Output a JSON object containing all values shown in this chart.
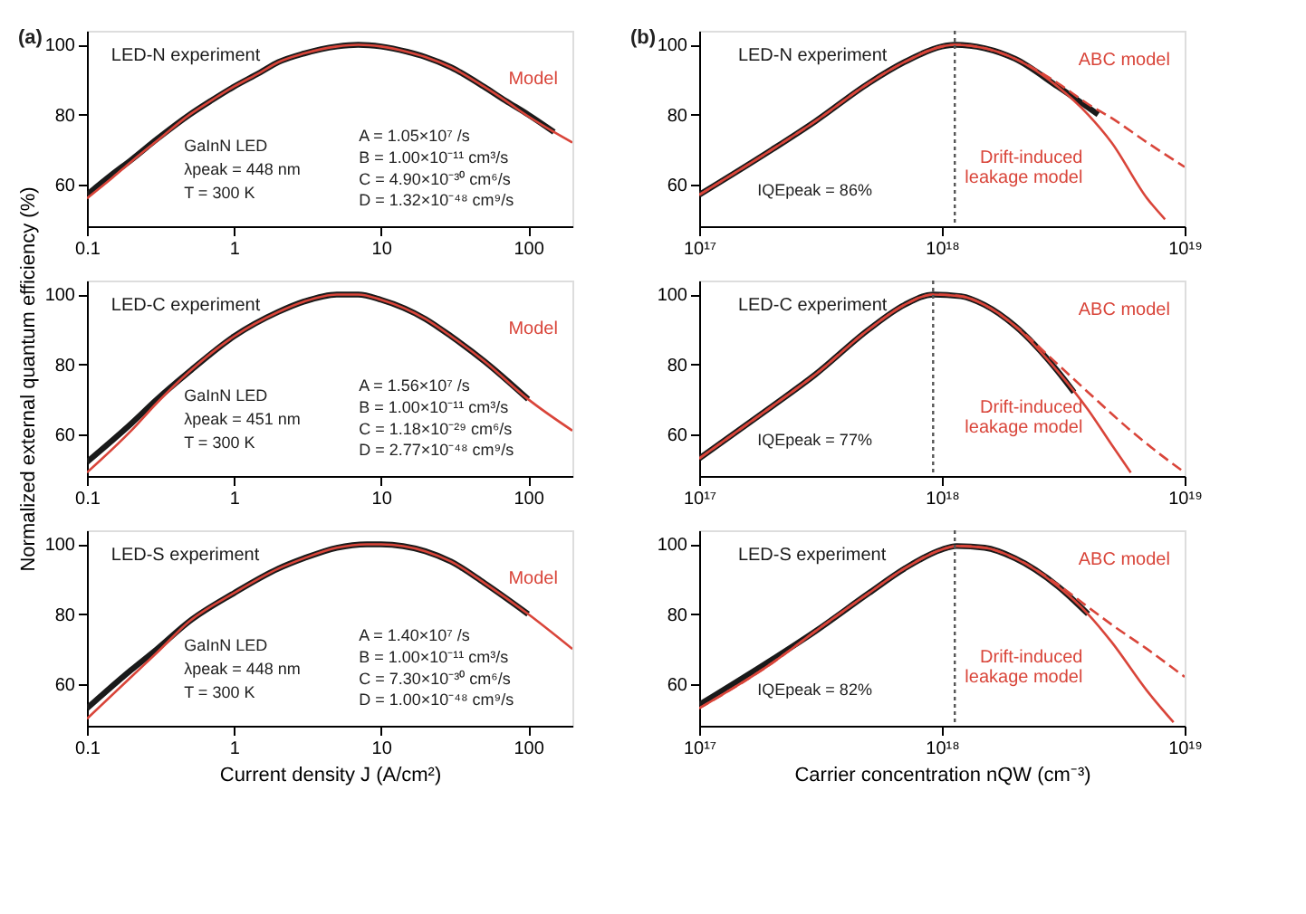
{
  "chart_data": [
    {
      "type": "line",
      "log": "x",
      "xlim": [
        0.1,
        200
      ],
      "xticks": [
        0.1,
        1,
        10,
        100
      ],
      "ylim": [
        48,
        104
      ],
      "yticks": [
        60,
        80,
        100
      ],
      "grid": false,
      "legend": false,
      "annotations": [
        "(a)",
        "GaInN LED",
        "λpeak = 448 nm",
        "T = 300 K",
        "A = 1.05×10⁷ /s",
        "B = 1.00×10⁻¹¹ cm³/s",
        "C = 4.90×10⁻³⁰ cm⁶/s",
        "D = 1.32×10⁻⁴⁸ cm⁹/s"
      ],
      "series": [
        {
          "name": "LED-N experiment",
          "color": "#1a1a1a",
          "type": "line",
          "line_style": "solid",
          "x": [
            0.1,
            0.15,
            0.2,
            0.3,
            0.5,
            0.7,
            1,
            1.5,
            2,
            3,
            5,
            7,
            10,
            15,
            20,
            30,
            50,
            70,
            100,
            150
          ],
          "values": [
            57,
            63,
            67,
            73,
            80,
            84,
            88,
            92,
            95,
            97.5,
            99.5,
            100,
            99.5,
            98,
            96.5,
            93.5,
            88,
            84,
            80,
            75
          ]
        },
        {
          "name": "Model",
          "color": "#d9453a",
          "type": "line",
          "line_style": "solid",
          "x": [
            0.1,
            0.15,
            0.2,
            0.3,
            0.5,
            0.7,
            1,
            1.5,
            2,
            3,
            5,
            7,
            10,
            15,
            20,
            30,
            50,
            70,
            100,
            150,
            200
          ],
          "values": [
            56,
            62,
            66.5,
            72.5,
            80,
            84,
            88,
            92,
            95,
            97.5,
            99.5,
            100,
            99.5,
            98,
            96.5,
            93.5,
            88,
            84,
            79.5,
            75,
            72
          ]
        }
      ]
    },
    {
      "type": "line",
      "log": "x",
      "xlim": [
        1e+17,
        1e+19
      ],
      "xticks": [
        {
          "value": 1e+17,
          "label": "10¹⁷"
        },
        {
          "value": 1e+18,
          "label": "10¹⁸"
        },
        {
          "value": 1e+19,
          "label": "10¹⁹"
        }
      ],
      "ylim": [
        48,
        104
      ],
      "yticks": [
        60,
        80,
        100
      ],
      "grid": false,
      "legend": false,
      "annotations": [
        "(b)",
        "IQEpeak = 86%"
      ],
      "ref_lines": [
        {
          "axis": "x",
          "value": 1.13e+18,
          "color": "#555555",
          "line_style": "dotted"
        }
      ],
      "series": [
        {
          "name": "LED-N experiment",
          "color": "#1a1a1a",
          "type": "line",
          "line_style": "solid",
          "x": [
            1e+17,
            2e+17,
            3e+17,
            5e+17,
            7e+17,
            1e+18,
            1.13e+18,
            1.5e+18,
            2e+18,
            3e+18,
            4.4e+18
          ],
          "values": [
            57,
            70,
            78,
            89,
            95,
            99.5,
            100,
            99,
            96,
            88,
            80
          ]
        },
        {
          "name": "ABC model",
          "color": "#d9453a",
          "type": "line",
          "line_style": "dashed",
          "x": [
            1e+17,
            2e+17,
            3e+17,
            5e+17,
            7e+17,
            1e+18,
            1.13e+18,
            1.5e+18,
            2e+18,
            3e+18,
            4e+18,
            5e+18,
            7e+18,
            1e+19
          ],
          "values": [
            57,
            70,
            78,
            89,
            95,
            99.5,
            100,
            99,
            96,
            89,
            83,
            79,
            72,
            65
          ]
        },
        {
          "name": "Drift-induced leakage model",
          "color": "#d9453a",
          "type": "line",
          "line_style": "solid",
          "x": [
            1e+17,
            2e+17,
            3e+17,
            5e+17,
            7e+17,
            1e+18,
            1.13e+18,
            1.5e+18,
            2e+18,
            3e+18,
            4e+18,
            5e+18,
            7e+18,
            8.3e+18
          ],
          "values": [
            57,
            70,
            78,
            89,
            95,
            99.5,
            100,
            99,
            96,
            88,
            80,
            72,
            56,
            50
          ]
        }
      ]
    },
    {
      "type": "line",
      "log": "x",
      "xlim": [
        0.1,
        200
      ],
      "xticks": [
        0.1,
        1,
        10,
        100
      ],
      "ylim": [
        48,
        104
      ],
      "yticks": [
        60,
        80,
        100
      ],
      "grid": false,
      "legend": false,
      "ylabel": "Normalized external quantum efficiency (%)",
      "annotations": [
        "GaInN LED",
        "λpeak = 451 nm",
        "T = 300 K",
        "A = 1.56×10⁷ /s",
        "B = 1.00×10⁻¹¹ cm³/s",
        "C = 1.18×10⁻²⁹ cm⁶/s",
        "D = 2.77×10⁻⁴⁸ cm⁹/s"
      ],
      "series": [
        {
          "name": "LED-C experiment",
          "color": "#1a1a1a",
          "type": "line",
          "line_style": "solid",
          "x": [
            0.1,
            0.2,
            0.3,
            0.5,
            1,
            2,
            3,
            5,
            7,
            10,
            20,
            30,
            50,
            100
          ],
          "values": [
            52,
            63,
            70,
            78,
            88,
            95,
            98,
            100,
            100,
            98.5,
            93,
            88,
            81,
            70
          ]
        },
        {
          "name": "Model",
          "color": "#d9453a",
          "type": "line",
          "line_style": "solid",
          "x": [
            0.1,
            0.2,
            0.3,
            0.5,
            1,
            2,
            3,
            5,
            7,
            10,
            20,
            30,
            50,
            100,
            200
          ],
          "values": [
            49,
            61,
            69,
            78,
            88,
            95,
            98,
            100,
            100,
            98.5,
            93,
            88,
            81,
            70,
            61
          ]
        }
      ]
    },
    {
      "type": "line",
      "log": "x",
      "xlim": [
        1e+17,
        1e+19
      ],
      "xticks": [
        {
          "value": 1e+17,
          "label": "10¹⁷"
        },
        {
          "value": 1e+18,
          "label": "10¹⁸"
        },
        {
          "value": 1e+19,
          "label": "10¹⁹"
        }
      ],
      "ylim": [
        48,
        104
      ],
      "yticks": [
        60,
        80,
        100
      ],
      "grid": false,
      "legend": false,
      "annotations": [
        "IQEpeak = 77%"
      ],
      "ref_lines": [
        {
          "axis": "x",
          "value": 9.2e+17,
          "color": "#555555",
          "line_style": "dotted"
        }
      ],
      "series": [
        {
          "name": "LED-C experiment",
          "color": "#1a1a1a",
          "type": "line",
          "line_style": "solid",
          "x": [
            1e+17,
            2e+17,
            3e+17,
            5e+17,
            7e+17,
            9.2e+17,
            1.2e+18,
            1.5e+18,
            2e+18,
            3e+18,
            3.5e+18
          ],
          "values": [
            53,
            68,
            77,
            90,
            97,
            100,
            99.5,
            97,
            91,
            78,
            72
          ]
        },
        {
          "name": "ABC model",
          "color": "#d9453a",
          "type": "line",
          "line_style": "dashed",
          "x": [
            1e+17,
            2e+17,
            3e+17,
            5e+17,
            7e+17,
            9.2e+17,
            1.2e+18,
            1.5e+18,
            2e+18,
            3e+18,
            4e+18,
            6e+18,
            8e+18,
            1e+19
          ],
          "values": [
            53,
            68,
            77,
            90,
            97,
            100,
            99.5,
            97,
            91,
            80,
            72,
            61,
            54,
            49
          ]
        },
        {
          "name": "Drift-induced leakage model",
          "color": "#d9453a",
          "type": "line",
          "line_style": "solid",
          "x": [
            1e+17,
            2e+17,
            3e+17,
            5e+17,
            7e+17,
            9.2e+17,
            1.2e+18,
            1.5e+18,
            2e+18,
            3e+18,
            4e+18,
            5e+18,
            6e+18
          ],
          "values": [
            53,
            68,
            77,
            90,
            97,
            100,
            99.5,
            97,
            91,
            78,
            67,
            57,
            49
          ]
        }
      ]
    },
    {
      "type": "line",
      "log": "x",
      "xlim": [
        0.1,
        200
      ],
      "xticks": [
        0.1,
        1,
        10,
        100
      ],
      "ylim": [
        48,
        104
      ],
      "yticks": [
        60,
        80,
        100
      ],
      "grid": false,
      "legend": false,
      "xlabel": "Current density J (A/cm²)",
      "annotations": [
        "GaInN LED",
        "λpeak = 448 nm",
        "T = 300 K",
        "A = 1.40×10⁷ /s",
        "B = 1.00×10⁻¹¹ cm³/s",
        "C = 7.30×10⁻³⁰ cm⁶/s",
        "D = 1.00×10⁻⁴⁸ cm⁹/s"
      ],
      "series": [
        {
          "name": "LED-S experiment",
          "color": "#1a1a1a",
          "type": "line",
          "line_style": "solid",
          "x": [
            0.1,
            0.2,
            0.3,
            0.5,
            1,
            2,
            3,
            5,
            8,
            10,
            20,
            30,
            50,
            100
          ],
          "values": [
            53,
            64,
            70,
            78,
            86,
            93,
            96,
            99,
            100,
            100,
            98,
            95,
            89,
            80
          ]
        },
        {
          "name": "Model",
          "color": "#d9453a",
          "type": "line",
          "line_style": "solid",
          "x": [
            0.1,
            0.2,
            0.3,
            0.5,
            1,
            2,
            3,
            5,
            8,
            10,
            20,
            30,
            50,
            100,
            200
          ],
          "values": [
            50,
            62,
            69,
            78,
            86,
            93,
            96,
            99,
            100,
            100,
            98,
            95,
            89,
            80,
            70
          ]
        }
      ]
    },
    {
      "type": "line",
      "log": "x",
      "xlim": [
        1e+17,
        1e+19
      ],
      "xticks": [
        {
          "value": 1e+17,
          "label": "10¹⁷"
        },
        {
          "value": 1e+18,
          "label": "10¹⁸"
        },
        {
          "value": 1e+19,
          "label": "10¹⁹"
        }
      ],
      "ylim": [
        48,
        104
      ],
      "yticks": [
        60,
        80,
        100
      ],
      "grid": false,
      "legend": false,
      "xlabel": "Carrier concentration nQW (cm⁻³)",
      "annotations": [
        "IQEpeak = 82%"
      ],
      "ref_lines": [
        {
          "axis": "x",
          "value": 1.13e+18,
          "color": "#555555",
          "line_style": "dotted"
        }
      ],
      "series": [
        {
          "name": "LED-S experiment",
          "color": "#1a1a1a",
          "type": "line",
          "line_style": "solid",
          "x": [
            1e+17,
            2e+17,
            3e+17,
            5e+17,
            7e+17,
            1e+18,
            1.15e+18,
            1.5e+18,
            2e+18,
            3e+18,
            4e+18
          ],
          "values": [
            54,
            67,
            75,
            86,
            93,
            98.5,
            99.5,
            99,
            96,
            88,
            80
          ]
        },
        {
          "name": "ABC model",
          "color": "#d9453a",
          "type": "line",
          "line_style": "dashed",
          "x": [
            1e+17,
            2e+17,
            3e+17,
            5e+17,
            7e+17,
            1e+18,
            1.15e+18,
            1.5e+18,
            2e+18,
            3e+18,
            4e+18,
            5e+18,
            7e+18,
            1e+19
          ],
          "values": [
            53,
            66,
            75,
            86,
            93,
            98.5,
            99.5,
            99,
            96,
            88.5,
            82,
            77,
            70,
            62
          ]
        },
        {
          "name": "Drift-induced leakage model",
          "color": "#d9453a",
          "type": "line",
          "line_style": "solid",
          "x": [
            1e+17,
            2e+17,
            3e+17,
            5e+17,
            7e+17,
            1e+18,
            1.15e+18,
            1.5e+18,
            2e+18,
            3e+18,
            4e+18,
            5e+18,
            7e+18,
            9e+18
          ],
          "values": [
            53,
            66,
            75,
            86,
            93,
            98.5,
            99.5,
            99,
            96,
            88,
            80,
            72,
            58,
            49
          ]
        }
      ]
    }
  ]
}
